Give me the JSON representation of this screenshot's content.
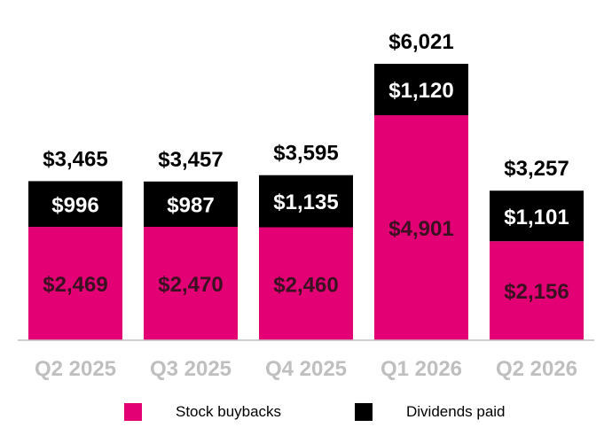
{
  "chart_data": {
    "type": "bar",
    "stacked": true,
    "categories": [
      "Q2 2025",
      "Q3 2025",
      "Q4 2025",
      "Q1 2026",
      "Q2 2026"
    ],
    "series": [
      {
        "name": "Stock buybacks",
        "color": "#e20074",
        "values": [
          2469,
          2470,
          2460,
          4901,
          2156
        ],
        "labels": [
          "$2,469",
          "$2,470",
          "$2,460",
          "$4,901",
          "$2,156"
        ]
      },
      {
        "name": "Dividends paid",
        "color": "#000000",
        "values": [
          996,
          987,
          1135,
          1120,
          1101
        ],
        "labels": [
          "$996",
          "$987",
          "$1,135",
          "$1,120",
          "$1,101"
        ]
      }
    ],
    "totals": [
      3465,
      3457,
      3595,
      6021,
      3257
    ],
    "total_labels": [
      "$3,465",
      "$3,457",
      "$3,595",
      "$6,021",
      "$3,257"
    ],
    "ylim": [
      0,
      6021
    ],
    "grid": false,
    "legend_position": "bottom",
    "tick_label_color": "#bfbfbf"
  }
}
